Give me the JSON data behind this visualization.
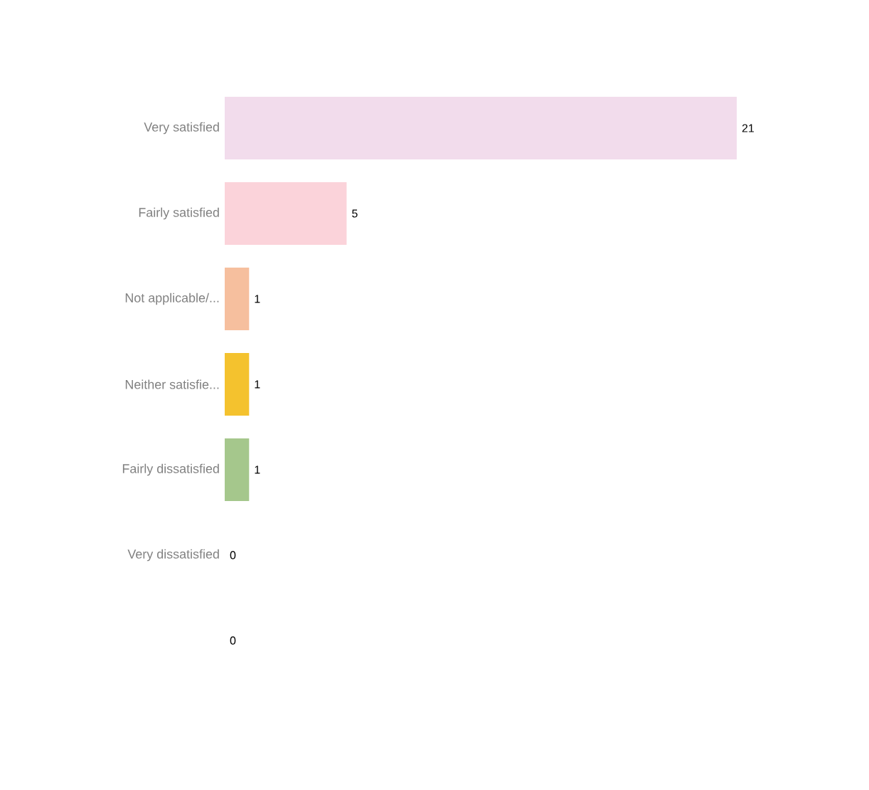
{
  "chart_data": {
    "type": "bar",
    "orientation": "horizontal",
    "categories": [
      "Very satisfied",
      "Fairly satisfied",
      "Not applicable/...",
      "Neither satisfie...",
      "Fairly dissatisfied",
      "Very dissatisfied",
      null
    ],
    "values": [
      21,
      5,
      1,
      1,
      1,
      0,
      0
    ],
    "colors": [
      "#f2dcec",
      "#fbd3da",
      "#f6bf9e",
      "#f4c22e",
      "#a5c78c",
      "#e9f08c",
      "#cfe8ec"
    ],
    "data_labels": true,
    "tick_labels": "y"
  }
}
